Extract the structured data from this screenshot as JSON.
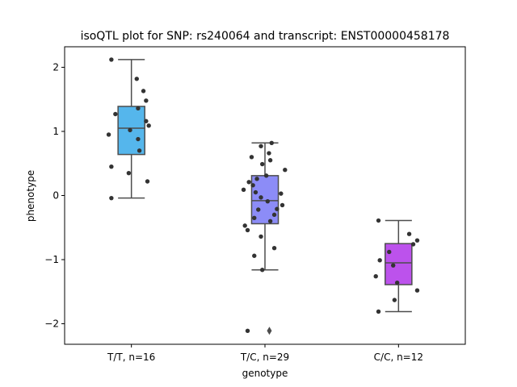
{
  "chart_data": {
    "type": "box",
    "title": "isoQTL plot for SNP: rs240064 and transcript: ENST00000458178",
    "xlabel": "genotype",
    "ylabel": "phenotype",
    "categories": [
      "T/T, n=16",
      "T/C, n=29",
      "C/C, n=12"
    ],
    "ylim": [
      -2.32,
      2.32
    ],
    "yticks": [
      {
        "value": 2,
        "label": "2"
      },
      {
        "value": 1,
        "label": "1"
      },
      {
        "value": 0,
        "label": "0"
      },
      {
        "value": -1,
        "label": "−1"
      },
      {
        "value": -2,
        "label": "−2"
      }
    ],
    "colors": [
      "#55b6ec",
      "#8c8cf7",
      "#bc52ec"
    ],
    "boxes": [
      {
        "q1": 0.64,
        "median": 1.05,
        "q3": 1.39,
        "whisker_low": -0.04,
        "whisker_high": 2.12,
        "outliers": []
      },
      {
        "q1": -0.44,
        "median": -0.08,
        "q3": 0.31,
        "whisker_low": -1.16,
        "whisker_high": 0.82,
        "outliers": [
          -2.11
        ]
      },
      {
        "q1": -1.39,
        "median": -1.05,
        "q3": -0.75,
        "whisker_low": -1.81,
        "whisker_high": -0.39,
        "outliers": []
      }
    ],
    "points": [
      [
        {
          "dx": -0.15,
          "y": 2.12
        },
        {
          "dx": 0.04,
          "y": 1.82
        },
        {
          "dx": 0.09,
          "y": 1.63
        },
        {
          "dx": 0.11,
          "y": 1.48
        },
        {
          "dx": 0.05,
          "y": 1.36
        },
        {
          "dx": -0.12,
          "y": 1.27
        },
        {
          "dx": 0.11,
          "y": 1.16
        },
        {
          "dx": 0.13,
          "y": 1.09
        },
        {
          "dx": -0.01,
          "y": 1.02
        },
        {
          "dx": -0.17,
          "y": 0.95
        },
        {
          "dx": 0.05,
          "y": 0.88
        },
        {
          "dx": 0.06,
          "y": 0.7
        },
        {
          "dx": -0.15,
          "y": 0.45
        },
        {
          "dx": -0.02,
          "y": 0.35
        },
        {
          "dx": 0.12,
          "y": 0.22
        },
        {
          "dx": -0.15,
          "y": -0.04
        }
      ],
      [
        {
          "dx": 0.05,
          "y": 0.82
        },
        {
          "dx": -0.03,
          "y": 0.77
        },
        {
          "dx": 0.03,
          "y": 0.66
        },
        {
          "dx": -0.1,
          "y": 0.6
        },
        {
          "dx": 0.04,
          "y": 0.55
        },
        {
          "dx": -0.02,
          "y": 0.49
        },
        {
          "dx": 0.15,
          "y": 0.4
        },
        {
          "dx": 0.01,
          "y": 0.31
        },
        {
          "dx": -0.06,
          "y": 0.26
        },
        {
          "dx": -0.12,
          "y": 0.21
        },
        {
          "dx": -0.09,
          "y": 0.16
        },
        {
          "dx": -0.16,
          "y": 0.09
        },
        {
          "dx": -0.07,
          "y": 0.05
        },
        {
          "dx": 0.12,
          "y": 0.03
        },
        {
          "dx": -0.03,
          "y": -0.03
        },
        {
          "dx": 0.02,
          "y": -0.09
        },
        {
          "dx": 0.13,
          "y": -0.15
        },
        {
          "dx": 0.09,
          "y": -0.21
        },
        {
          "dx": -0.05,
          "y": -0.22
        },
        {
          "dx": 0.07,
          "y": -0.3
        },
        {
          "dx": -0.08,
          "y": -0.35
        },
        {
          "dx": 0.04,
          "y": -0.4
        },
        {
          "dx": -0.15,
          "y": -0.47
        },
        {
          "dx": -0.13,
          "y": -0.54
        },
        {
          "dx": -0.03,
          "y": -0.64
        },
        {
          "dx": 0.07,
          "y": -0.82
        },
        {
          "dx": -0.08,
          "y": -0.94
        },
        {
          "dx": -0.02,
          "y": -1.16
        },
        {
          "dx": -0.13,
          "y": -2.11
        }
      ],
      [
        {
          "dx": -0.15,
          "y": -0.39
        },
        {
          "dx": 0.08,
          "y": -0.6
        },
        {
          "dx": 0.14,
          "y": -0.7
        },
        {
          "dx": 0.11,
          "y": -0.76
        },
        {
          "dx": -0.07,
          "y": -0.88
        },
        {
          "dx": -0.14,
          "y": -1.01
        },
        {
          "dx": -0.04,
          "y": -1.09
        },
        {
          "dx": -0.17,
          "y": -1.26
        },
        {
          "dx": -0.01,
          "y": -1.36
        },
        {
          "dx": 0.14,
          "y": -1.48
        },
        {
          "dx": -0.03,
          "y": -1.63
        },
        {
          "dx": -0.15,
          "y": -1.81
        }
      ]
    ]
  }
}
